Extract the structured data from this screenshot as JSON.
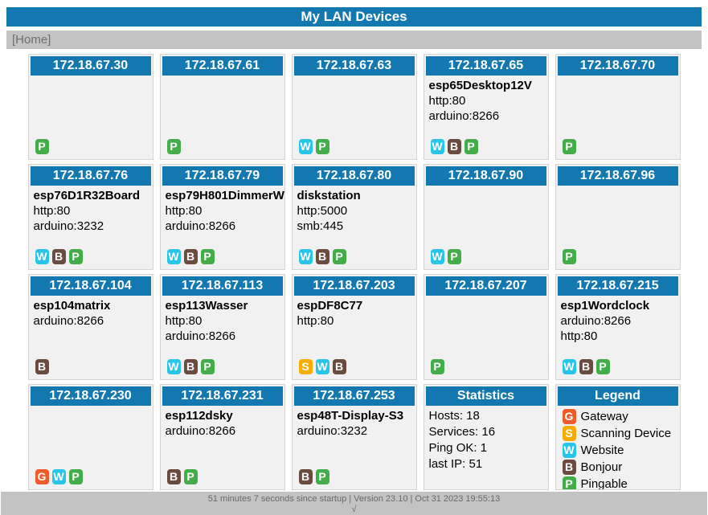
{
  "header": {
    "title": "My LAN Devices"
  },
  "nav": {
    "home": "[Home]"
  },
  "colors": {
    "accent_blue": "#1478b0",
    "bar_gray": "#c3c3c3",
    "card_bg": "#f1f1f1",
    "card_border": "#d4d4d4",
    "badge_text": "#ffffff"
  },
  "badge_types": {
    "G": {
      "name": "gateway",
      "color": "#f15a29"
    },
    "S": {
      "name": "scanning-device",
      "color": "#f8ac00"
    },
    "W": {
      "name": "website",
      "color": "#29c5e8"
    },
    "B": {
      "name": "bonjour",
      "color": "#6b4a3f"
    },
    "P": {
      "name": "pingable",
      "color": "#43ad49"
    }
  },
  "devices": [
    {
      "ip": "172.18.67.30",
      "name": "",
      "services": [],
      "badges": [
        "P"
      ]
    },
    {
      "ip": "172.18.67.61",
      "name": "",
      "services": [],
      "badges": [
        "P"
      ]
    },
    {
      "ip": "172.18.67.63",
      "name": "",
      "services": [],
      "badges": [
        "W",
        "P"
      ]
    },
    {
      "ip": "172.18.67.65",
      "name": "esp65Desktop12V",
      "services": [
        "http:80",
        "arduino:8266"
      ],
      "badges": [
        "W",
        "B",
        "P"
      ]
    },
    {
      "ip": "172.18.67.70",
      "name": "",
      "services": [],
      "badges": [
        "P"
      ]
    },
    {
      "ip": "172.18.67.76",
      "name": "esp76D1R32Board",
      "services": [
        "http:80",
        "arduino:3232"
      ],
      "badges": [
        "W",
        "B",
        "P"
      ]
    },
    {
      "ip": "172.18.67.79",
      "name": "esp79H801DimmerW",
      "services": [
        "http:80",
        "arduino:8266"
      ],
      "badges": [
        "W",
        "B",
        "P"
      ]
    },
    {
      "ip": "172.18.67.80",
      "name": "diskstation",
      "services": [
        "http:5000",
        "smb:445"
      ],
      "badges": [
        "W",
        "B",
        "P"
      ]
    },
    {
      "ip": "172.18.67.90",
      "name": "",
      "services": [],
      "badges": [
        "W",
        "P"
      ]
    },
    {
      "ip": "172.18.67.96",
      "name": "",
      "services": [],
      "badges": [
        "P"
      ]
    },
    {
      "ip": "172.18.67.104",
      "name": "esp104matrix",
      "services": [
        "arduino:8266"
      ],
      "badges": [
        "B"
      ]
    },
    {
      "ip": "172.18.67.113",
      "name": "esp113Wasser",
      "services": [
        "http:80",
        "arduino:8266"
      ],
      "badges": [
        "W",
        "B",
        "P"
      ]
    },
    {
      "ip": "172.18.67.203",
      "name": "espDF8C77",
      "services": [
        "http:80"
      ],
      "badges": [
        "S",
        "W",
        "B"
      ]
    },
    {
      "ip": "172.18.67.207",
      "name": "",
      "services": [],
      "badges": [
        "P"
      ]
    },
    {
      "ip": "172.18.67.215",
      "name": "esp1Wordclock",
      "services": [
        "arduino:8266",
        "http:80"
      ],
      "badges": [
        "W",
        "B",
        "P"
      ]
    },
    {
      "ip": "172.18.67.230",
      "name": "",
      "services": [],
      "badges": [
        "G",
        "W",
        "P"
      ]
    },
    {
      "ip": "172.18.67.231",
      "name": "esp112dsky",
      "services": [
        "arduino:8266"
      ],
      "badges": [
        "B",
        "P"
      ]
    },
    {
      "ip": "172.18.67.253",
      "name": "esp48T-Display-S3",
      "services": [
        "arduino:3232"
      ],
      "badges": [
        "B",
        "P"
      ]
    }
  ],
  "statistics": {
    "title": "Statistics",
    "lines": [
      "Hosts: 18",
      "Services: 16",
      "Ping OK: 1",
      "last IP: 51"
    ]
  },
  "legend": {
    "title": "Legend",
    "items": [
      {
        "badge": "G",
        "label": "Gateway"
      },
      {
        "badge": "S",
        "label": "Scanning Device"
      },
      {
        "badge": "W",
        "label": "Website"
      },
      {
        "badge": "B",
        "label": "Bonjour"
      },
      {
        "badge": "P",
        "label": "Pingable"
      }
    ]
  },
  "footer": {
    "status": "51 minutes 7 seconds since startup | Version 23.10 | Oct 31 2023 19:55:13",
    "check": "√"
  }
}
